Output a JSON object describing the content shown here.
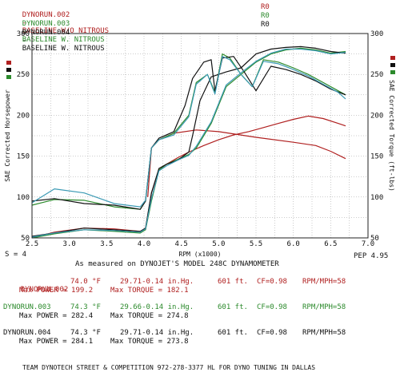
{
  "legend_runs": [
    {
      "id": "DYNORUN.002",
      "sep": "-",
      "desc": "BASELINE W/O NITROUS",
      "code": "R0",
      "color": "#b02020"
    },
    {
      "id": "DYNORUN.003",
      "sep": "-",
      "desc": "BASELINE W. NITROUS",
      "code": "R0",
      "color": "#2c8a2c"
    },
    {
      "id": "DYNORUN.004",
      "sep": "-",
      "desc": "BASELINE W. NITROUS",
      "code": "R0",
      "color": "#111111"
    }
  ],
  "footer": {
    "smoothing": "S = 4",
    "pep": "PEP 4.95",
    "measured": "As measured on DYNOJET'S MODEL 248C DYNAMOMETER",
    "banner": "TEAM DYNOTECH STREET & COMPETITION 972-278-3377 HL FOR DYNO TUNING IN DALLAS"
  },
  "runs": [
    {
      "id": "DYNORUN.002",
      "temp": "74.0 °F",
      "baro": "29.71-0.14 in.Hg.",
      "alt": "601 ft.",
      "cf": "CF=0.98",
      "ratio": "RPM/MPH=58",
      "max_power": "Max POWER = 199.2",
      "max_torque": "Max TORQUE = 182.1",
      "color": "#b02020"
    },
    {
      "id": "DYNORUN.003",
      "temp": "74.3 °F",
      "baro": "29.66-0.14 in.Hg.",
      "alt": "601 ft.",
      "cf": "CF=0.98",
      "ratio": "RPM/MPH=58",
      "max_power": "Max POWER = 282.4",
      "max_torque": "Max TORQUE = 274.8",
      "color": "#2c8a2c"
    },
    {
      "id": "DYNORUN.004",
      "temp": "74.3 °F",
      "baro": "29.71-0.14 in.Hg.",
      "alt": "601 ft.",
      "cf": "CF=0.98",
      "ratio": "RPM/MPH=58",
      "max_power": "Max POWER = 284.1",
      "max_torque": "Max TORQUE = 273.8",
      "color": "#111111"
    }
  ],
  "chart_data": {
    "type": "line",
    "xlabel": "RPM (x1000)",
    "ylabel_left": "SAE Corrected Horsepower",
    "ylabel_right": "SAE Corrected Torque (ft-lbs)",
    "xlim": [
      2.5,
      7.0
    ],
    "ylim": [
      50,
      300
    ],
    "xticks": [
      2.5,
      3.0,
      3.5,
      4.0,
      4.5,
      5.0,
      5.5,
      6.0,
      6.5,
      7.0
    ],
    "xtick_labels": [
      "2.5",
      "3.0",
      "3.5",
      "4.0",
      "4.5",
      "5.0",
      "5.5",
      "6.0",
      "6.5",
      "7.0"
    ],
    "yticks": [
      50,
      100,
      150,
      200,
      250,
      300
    ],
    "ytick_labels_left": [
      "50",
      "100",
      "150",
      "200",
      "250",
      "300"
    ],
    "ytick_labels_right": [
      "50",
      "100",
      "150",
      "200",
      "250",
      "300"
    ],
    "grid": true,
    "series": [
      {
        "name": "DYNORUN.002",
        "metric": "horsepower",
        "color": "#b02020",
        "x": [
          2.5,
          2.8,
          3.2,
          3.6,
          3.95,
          4.02,
          4.1,
          4.2,
          4.3,
          4.45,
          4.6,
          4.8,
          5.0,
          5.2,
          5.4,
          5.6,
          5.8,
          6.0,
          6.2,
          6.4,
          6.6,
          6.7
        ],
        "y": [
          50,
          57,
          62,
          61,
          58,
          60,
          105,
          133,
          140,
          148,
          155,
          163,
          170,
          176,
          180,
          185,
          190,
          195,
          199,
          196,
          190,
          187
        ]
      },
      {
        "name": "DYNORUN.002",
        "metric": "torque",
        "color": "#b02020",
        "x": [
          4.05,
          4.1,
          4.2,
          4.4,
          4.7,
          5.0,
          5.5,
          6.0,
          6.3,
          6.5,
          6.7
        ],
        "y": [
          100,
          160,
          170,
          178,
          182,
          180,
          173,
          167,
          163,
          156,
          147
        ]
      },
      {
        "name": "DYNORUN.003",
        "metric": "horsepower",
        "color": "#2c8a2c",
        "x": [
          2.5,
          2.8,
          3.2,
          3.6,
          3.95,
          4.02,
          4.1,
          4.2,
          4.3,
          4.45,
          4.6,
          4.7,
          4.9,
          5.1,
          5.3,
          5.5,
          5.7,
          5.9,
          6.1,
          6.3,
          6.5,
          6.7
        ],
        "y": [
          50,
          55,
          60,
          58,
          56,
          60,
          95,
          133,
          140,
          146,
          152,
          160,
          190,
          235,
          250,
          265,
          275,
          280,
          282,
          280,
          276,
          278
        ]
      },
      {
        "name": "DYNORUN.003",
        "metric": "torque",
        "color": "#2c8a2c",
        "x": [
          2.5,
          2.8,
          3.2,
          3.6,
          3.95,
          4.02,
          4.1,
          4.2,
          4.4,
          4.6,
          4.7,
          4.85,
          4.95,
          5.05,
          5.15,
          5.3,
          5.45,
          5.6,
          5.8,
          6.0,
          6.2,
          6.4,
          6.6,
          6.7
        ],
        "y": [
          90,
          97,
          96,
          88,
          85,
          95,
          160,
          170,
          178,
          200,
          240,
          250,
          228,
          275,
          270,
          250,
          235,
          268,
          265,
          258,
          250,
          240,
          230,
          225
        ]
      },
      {
        "name": "DYNORUN.004",
        "metric": "horsepower",
        "color": "#111111",
        "x": [
          2.5,
          2.8,
          3.2,
          3.6,
          3.95,
          4.02,
          4.1,
          4.2,
          4.3,
          4.45,
          4.6,
          4.65,
          4.75,
          4.9,
          5.1,
          5.3,
          5.5,
          5.7,
          5.9,
          6.1,
          6.3,
          6.5,
          6.7
        ],
        "y": [
          52,
          56,
          62,
          60,
          58,
          62,
          105,
          135,
          140,
          145,
          155,
          175,
          218,
          247,
          253,
          258,
          275,
          281,
          283,
          284,
          282,
          278,
          276
        ]
      },
      {
        "name": "DYNORUN.004",
        "metric": "torque",
        "color": "#111111",
        "x": [
          2.5,
          2.8,
          3.2,
          3.6,
          3.95,
          4.02,
          4.1,
          4.2,
          4.4,
          4.55,
          4.65,
          4.8,
          4.9,
          4.95,
          5.05,
          5.2,
          5.35,
          5.5,
          5.7,
          5.9,
          6.1,
          6.3,
          6.5,
          6.7
        ],
        "y": [
          95,
          98,
          92,
          90,
          85,
          95,
          160,
          172,
          180,
          212,
          245,
          265,
          268,
          230,
          270,
          272,
          252,
          230,
          260,
          256,
          250,
          242,
          232,
          225
        ]
      },
      {
        "name": "",
        "metric": "torque",
        "color": "#3c9ab4",
        "x": [
          2.5,
          2.8,
          3.2,
          3.6,
          3.95,
          4.02,
          4.1,
          4.2,
          4.4,
          4.6,
          4.7,
          4.85,
          4.95,
          5.05,
          5.15,
          5.3,
          5.45,
          5.6,
          5.8,
          6.0,
          6.2,
          6.4,
          6.6,
          6.7
        ],
        "y": [
          93,
          110,
          105,
          92,
          88,
          96,
          160,
          170,
          176,
          198,
          238,
          250,
          226,
          272,
          268,
          250,
          235,
          266,
          263,
          256,
          248,
          238,
          228,
          220
        ]
      },
      {
        "name": "",
        "metric": "horsepower",
        "color": "#3c9ab4",
        "x": [
          2.5,
          2.8,
          3.2,
          3.6,
          3.95,
          4.02,
          4.1,
          4.2,
          4.3,
          4.45,
          4.6,
          4.7,
          4.9,
          5.1,
          5.3,
          5.5,
          5.7,
          5.9,
          6.1,
          6.3,
          6.5,
          6.7
        ],
        "y": [
          51,
          56,
          60,
          59,
          57,
          61,
          98,
          132,
          138,
          145,
          151,
          162,
          192,
          237,
          252,
          266,
          276,
          281,
          281,
          279,
          275,
          277
        ]
      }
    ]
  }
}
